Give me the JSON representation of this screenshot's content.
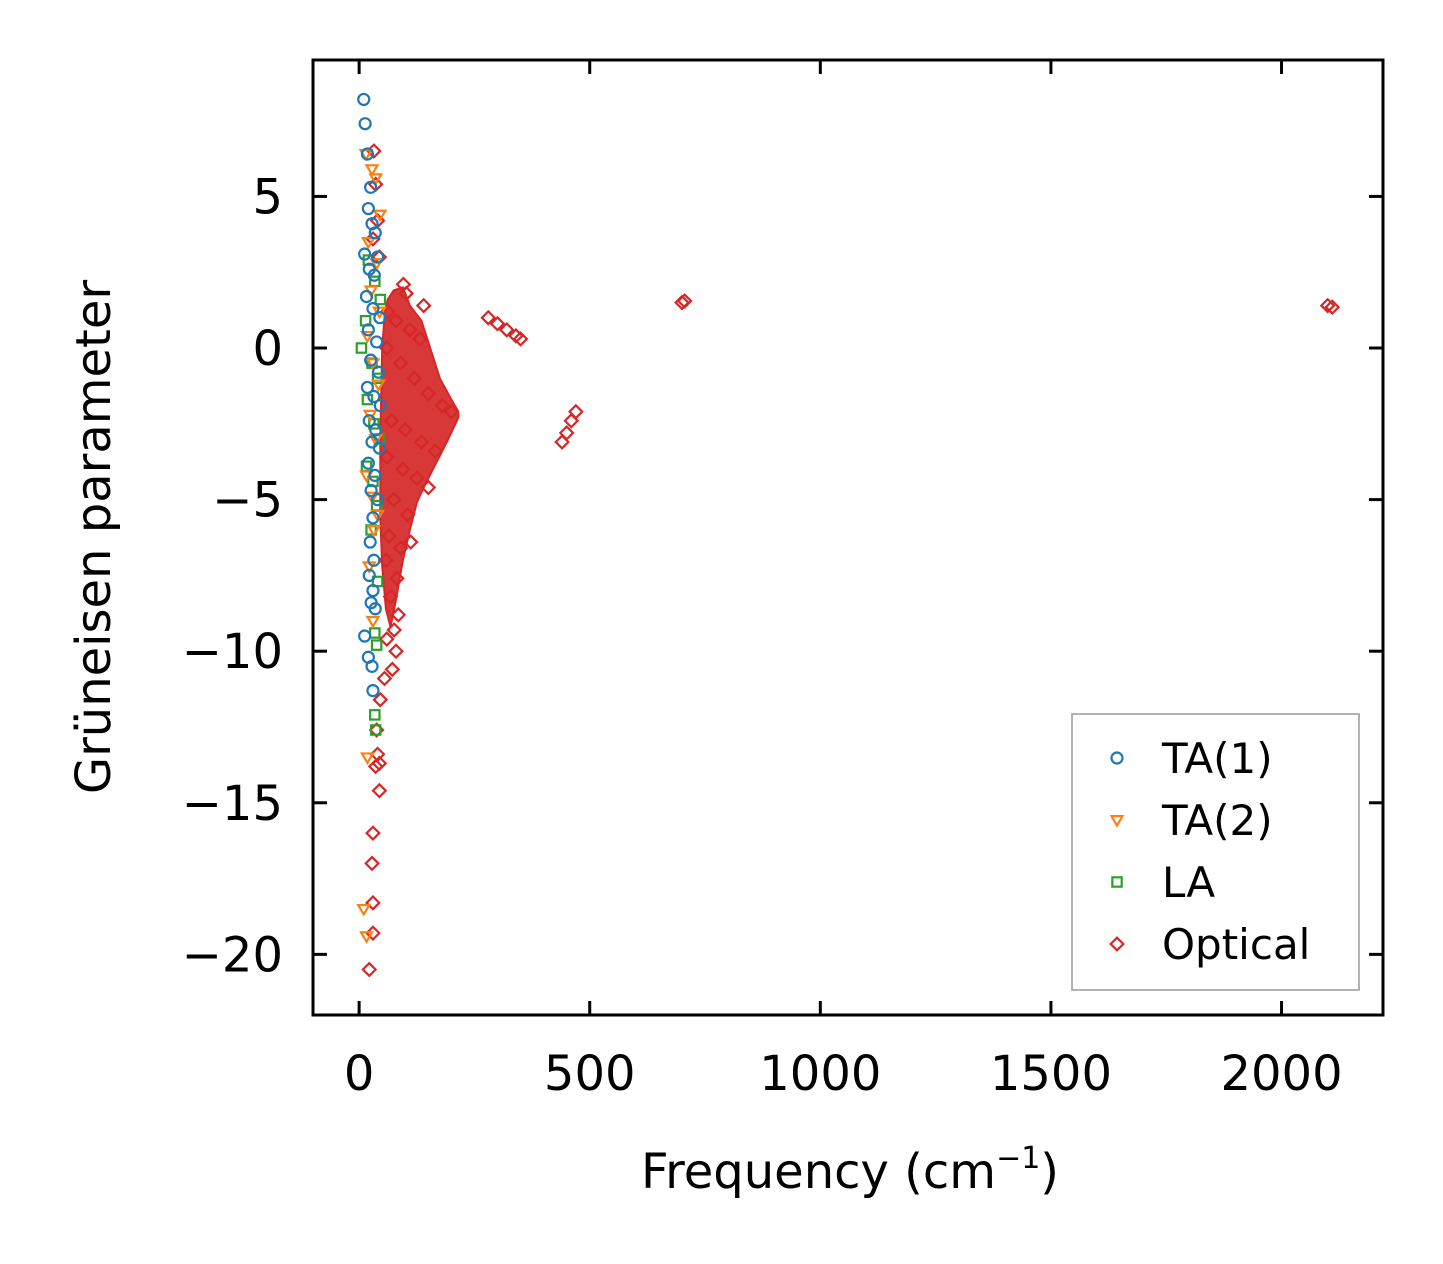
{
  "chart_data": {
    "type": "scatter",
    "title": "",
    "xlabel": "Frequency (cm",
    "xlabel_superscript": "−1",
    "xlabel_suffix": ")",
    "ylabel": "Grüneisen parameter",
    "xlim": [
      -100,
      2220
    ],
    "ylim": [
      -22,
      9.5
    ],
    "xticks": [
      0,
      500,
      1000,
      1500,
      2000
    ],
    "xtick_labels": [
      "0",
      "500",
      "1000",
      "1500",
      "2000"
    ],
    "yticks": [
      5,
      0,
      -5,
      -10,
      -15,
      -20
    ],
    "ytick_labels": [
      "5",
      "0",
      "−5",
      "−10",
      "−15",
      "−20"
    ],
    "grid": false,
    "legend_position": "bottom-right",
    "series": [
      {
        "name": "TA(1)",
        "marker": "circle",
        "color": "#1f77b4",
        "points": [
          [
            10,
            8.2
          ],
          [
            13,
            7.4
          ],
          [
            18,
            6.4
          ],
          [
            25,
            5.3
          ],
          [
            20,
            4.6
          ],
          [
            28,
            4.1
          ],
          [
            35,
            3.8
          ],
          [
            12,
            3.1
          ],
          [
            22,
            2.6
          ],
          [
            33,
            2.4
          ],
          [
            40,
            3.0
          ],
          [
            16,
            1.7
          ],
          [
            30,
            1.3
          ],
          [
            45,
            1.0
          ],
          [
            20,
            0.6
          ],
          [
            38,
            0.2
          ],
          [
            25,
            -0.4
          ],
          [
            42,
            -0.8
          ],
          [
            18,
            -1.3
          ],
          [
            32,
            -1.6
          ],
          [
            46,
            -1.9
          ],
          [
            22,
            -2.4
          ],
          [
            36,
            -2.7
          ],
          [
            28,
            -3.1
          ],
          [
            44,
            -3.3
          ],
          [
            20,
            -3.8
          ],
          [
            34,
            -4.2
          ],
          [
            26,
            -4.7
          ],
          [
            40,
            -5.0
          ],
          [
            30,
            -5.6
          ],
          [
            24,
            -6.4
          ],
          [
            32,
            -7.0
          ],
          [
            22,
            -7.5
          ],
          [
            30,
            -8.0
          ],
          [
            26,
            -8.4
          ],
          [
            35,
            -8.6
          ],
          [
            12,
            -9.5
          ],
          [
            20,
            -10.2
          ],
          [
            28,
            -10.5
          ],
          [
            30,
            -11.3
          ]
        ]
      },
      {
        "name": "TA(2)",
        "marker": "triangle",
        "color": "#ff7f0e",
        "points": [
          [
            15,
            6.4
          ],
          [
            28,
            5.9
          ],
          [
            36,
            5.6
          ],
          [
            45,
            4.4
          ],
          [
            20,
            3.5
          ],
          [
            38,
            2.8
          ],
          [
            26,
            1.9
          ],
          [
            44,
            1.2
          ],
          [
            18,
            0.4
          ],
          [
            30,
            -0.5
          ],
          [
            42,
            -1.2
          ],
          [
            24,
            -2.2
          ],
          [
            36,
            -3.0
          ],
          [
            16,
            -4.2
          ],
          [
            28,
            -4.9
          ],
          [
            40,
            -5.5
          ],
          [
            32,
            -6.0
          ],
          [
            22,
            -7.2
          ],
          [
            30,
            -9.0
          ],
          [
            18,
            -13.5
          ],
          [
            10,
            -18.5
          ],
          [
            16,
            -19.4
          ]
        ]
      },
      {
        "name": "LA",
        "marker": "square",
        "color": "#2ca02c",
        "points": [
          [
            5,
            0.0
          ],
          [
            20,
            2.9
          ],
          [
            34,
            2.2
          ],
          [
            46,
            1.6
          ],
          [
            14,
            0.9
          ],
          [
            28,
            -0.5
          ],
          [
            40,
            -1.0
          ],
          [
            18,
            -1.7
          ],
          [
            32,
            -2.5
          ],
          [
            44,
            -3.0
          ],
          [
            16,
            -3.9
          ],
          [
            30,
            -4.4
          ],
          [
            38,
            -5.2
          ],
          [
            26,
            -6.0
          ],
          [
            40,
            -7.7
          ],
          [
            34,
            -9.4
          ],
          [
            38,
            -9.8
          ],
          [
            34,
            -12.1
          ],
          [
            36,
            -12.6
          ]
        ]
      },
      {
        "name": "Optical",
        "marker": "diamond",
        "color": "#d62728",
        "points": [
          [
            32,
            6.5
          ],
          [
            36,
            5.4
          ],
          [
            40,
            4.2
          ],
          [
            30,
            3.6
          ],
          [
            44,
            3.0
          ],
          [
            96,
            2.1
          ],
          [
            102,
            1.8
          ],
          [
            140,
            1.4
          ],
          [
            62,
            1.2
          ],
          [
            80,
            0.9
          ],
          [
            110,
            0.6
          ],
          [
            132,
            0.3
          ],
          [
            60,
            0.0
          ],
          [
            90,
            -0.5
          ],
          [
            120,
            -1.0
          ],
          [
            150,
            -1.5
          ],
          [
            180,
            -1.9
          ],
          [
            200,
            -2.1
          ],
          [
            70,
            -2.4
          ],
          [
            100,
            -2.7
          ],
          [
            135,
            -3.1
          ],
          [
            165,
            -3.4
          ],
          [
            60,
            -3.6
          ],
          [
            95,
            -4.0
          ],
          [
            125,
            -4.3
          ],
          [
            150,
            -4.6
          ],
          [
            75,
            -5.0
          ],
          [
            105,
            -5.5
          ],
          [
            65,
            -6.2
          ],
          [
            90,
            -6.6
          ],
          [
            112,
            -6.4
          ],
          [
            58,
            -7.0
          ],
          [
            82,
            -7.6
          ],
          [
            68,
            -8.2
          ],
          [
            85,
            -8.8
          ],
          [
            76,
            -9.3
          ],
          [
            60,
            -9.6
          ],
          [
            80,
            -10.0
          ],
          [
            72,
            -10.6
          ],
          [
            55,
            -10.9
          ],
          [
            46,
            -11.6
          ],
          [
            38,
            -12.6
          ],
          [
            40,
            -13.4
          ],
          [
            44,
            -13.7
          ],
          [
            36,
            -13.8
          ],
          [
            44,
            -14.6
          ],
          [
            30,
            -16.0
          ],
          [
            28,
            -17.0
          ],
          [
            30,
            -18.3
          ],
          [
            30,
            -19.3
          ],
          [
            22,
            -20.5
          ],
          [
            280,
            1.0
          ],
          [
            300,
            0.8
          ],
          [
            320,
            0.6
          ],
          [
            340,
            0.4
          ],
          [
            350,
            0.3
          ],
          [
            440,
            -3.1
          ],
          [
            450,
            -2.8
          ],
          [
            460,
            -2.4
          ],
          [
            470,
            -2.1
          ],
          [
            700,
            1.5
          ],
          [
            706,
            1.55
          ],
          [
            2100,
            1.4
          ],
          [
            2110,
            1.35
          ]
        ]
      }
    ],
    "dense_region_color": "#d62728",
    "dense_region_label": ""
  }
}
